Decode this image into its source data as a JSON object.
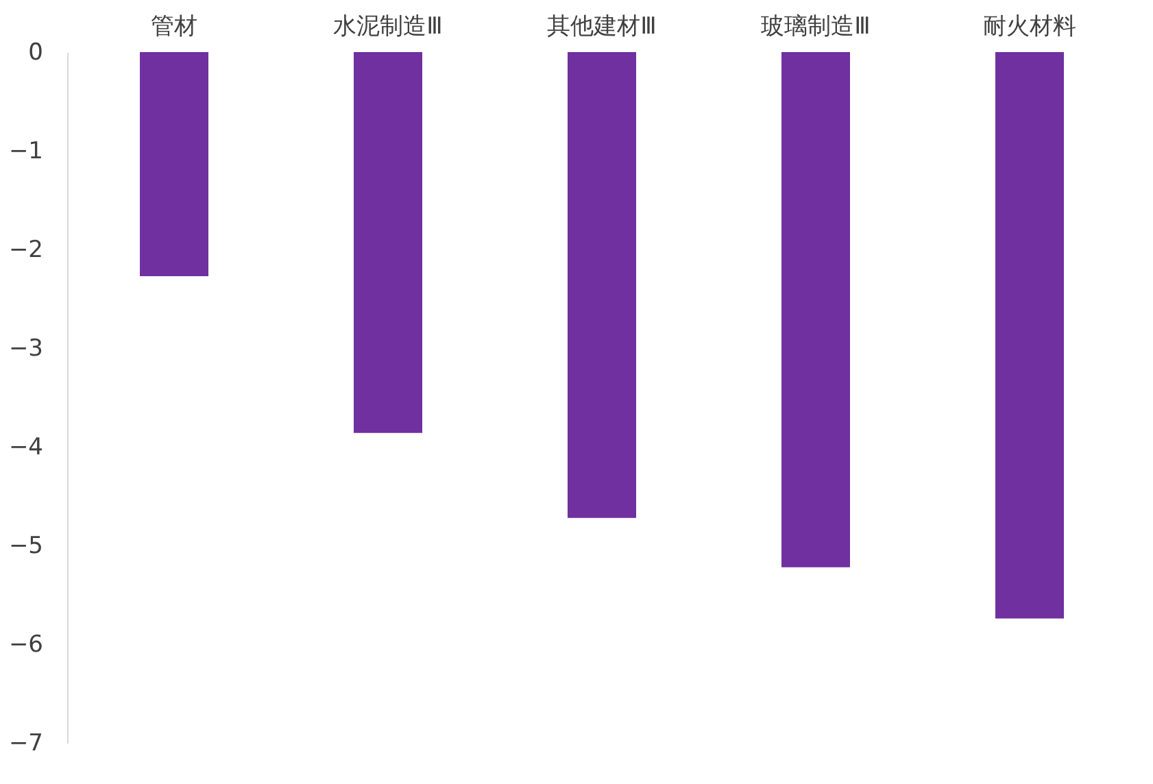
{
  "chart_data": {
    "type": "bar",
    "categories": [
      "管材",
      "水泥制造Ⅲ",
      "其他建材Ⅲ",
      "玻璃制造Ⅲ",
      "耐火材料"
    ],
    "values": [
      -2.27,
      -3.86,
      -4.72,
      -5.22,
      -5.74
    ],
    "color": "#7030a0",
    "ylim": [
      -7,
      0
    ],
    "yticks": [
      0,
      -1,
      -2,
      -3,
      -4,
      -5,
      -6,
      -7
    ],
    "grid": false
  }
}
